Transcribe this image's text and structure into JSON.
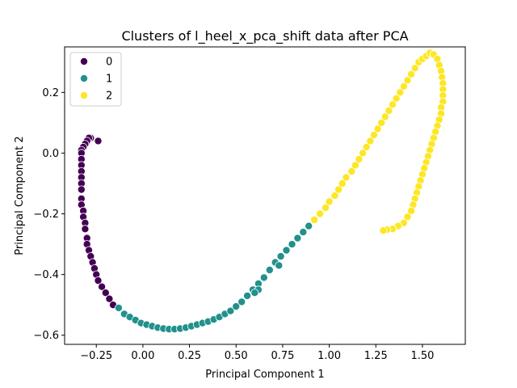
{
  "chart_data": {
    "type": "scatter",
    "title": "Clusters of l_heel_x_pca_shift data after PCA",
    "xlabel": "Principal Component 1",
    "ylabel": "Principal Component 2",
    "xlim": [
      -0.42,
      1.73
    ],
    "ylim": [
      -0.63,
      0.35
    ],
    "xticks": [
      -0.25,
      0.0,
      0.25,
      0.5,
      0.75,
      1.0,
      1.25,
      1.5
    ],
    "yticks": [
      -0.6,
      -0.4,
      -0.2,
      0.0,
      0.2
    ],
    "xtick_labels": [
      "−0.25",
      "0.00",
      "0.25",
      "0.50",
      "0.75",
      "1.00",
      "1.25",
      "1.50"
    ],
    "ytick_labels": [
      "−0.6",
      "−0.4",
      "−0.2",
      "0.0",
      "0.2"
    ],
    "grid": false,
    "legend_position": "top-left",
    "series": [
      {
        "name": "0",
        "color": "#440154",
        "points": [
          [
            -0.24,
            0.04
          ],
          [
            -0.28,
            0.05
          ],
          [
            -0.29,
            0.05
          ],
          [
            -0.3,
            0.04
          ],
          [
            -0.31,
            0.03
          ],
          [
            -0.32,
            0.02
          ],
          [
            -0.33,
            0.01
          ],
          [
            -0.33,
            0.0
          ],
          [
            -0.33,
            -0.02
          ],
          [
            -0.33,
            -0.04
          ],
          [
            -0.33,
            -0.06
          ],
          [
            -0.33,
            -0.08
          ],
          [
            -0.33,
            -0.1
          ],
          [
            -0.33,
            -0.12
          ],
          [
            -0.33,
            -0.15
          ],
          [
            -0.33,
            -0.17
          ],
          [
            -0.32,
            -0.19
          ],
          [
            -0.32,
            -0.21
          ],
          [
            -0.31,
            -0.23
          ],
          [
            -0.31,
            -0.25
          ],
          [
            -0.3,
            -0.28
          ],
          [
            -0.3,
            -0.3
          ],
          [
            -0.29,
            -0.32
          ],
          [
            -0.28,
            -0.34
          ],
          [
            -0.27,
            -0.36
          ],
          [
            -0.26,
            -0.38
          ],
          [
            -0.25,
            -0.4
          ],
          [
            -0.24,
            -0.42
          ],
          [
            -0.22,
            -0.44
          ],
          [
            -0.2,
            -0.46
          ],
          [
            -0.18,
            -0.48
          ],
          [
            -0.16,
            -0.5
          ]
        ]
      },
      {
        "name": "1",
        "color": "#21918c",
        "points": [
          [
            -0.13,
            -0.51
          ],
          [
            -0.1,
            -0.53
          ],
          [
            -0.07,
            -0.54
          ],
          [
            -0.04,
            -0.55
          ],
          [
            -0.01,
            -0.56
          ],
          [
            0.02,
            -0.565
          ],
          [
            0.05,
            -0.57
          ],
          [
            0.08,
            -0.575
          ],
          [
            0.11,
            -0.578
          ],
          [
            0.14,
            -0.58
          ],
          [
            0.17,
            -0.58
          ],
          [
            0.2,
            -0.578
          ],
          [
            0.23,
            -0.575
          ],
          [
            0.26,
            -0.57
          ],
          [
            0.29,
            -0.565
          ],
          [
            0.32,
            -0.56
          ],
          [
            0.35,
            -0.555
          ],
          [
            0.38,
            -0.548
          ],
          [
            0.41,
            -0.54
          ],
          [
            0.44,
            -0.53
          ],
          [
            0.47,
            -0.52
          ],
          [
            0.5,
            -0.505
          ],
          [
            0.53,
            -0.49
          ],
          [
            0.56,
            -0.47
          ],
          [
            0.59,
            -0.45
          ],
          [
            0.62,
            -0.43
          ],
          [
            0.65,
            -0.41
          ],
          [
            0.68,
            -0.385
          ],
          [
            0.71,
            -0.36
          ],
          [
            0.74,
            -0.34
          ],
          [
            0.77,
            -0.32
          ],
          [
            0.8,
            -0.3
          ],
          [
            0.83,
            -0.28
          ],
          [
            0.86,
            -0.26
          ],
          [
            0.89,
            -0.24
          ],
          [
            0.62,
            -0.45
          ],
          [
            0.6,
            -0.46
          ],
          [
            0.73,
            -0.37
          ]
        ]
      },
      {
        "name": "2",
        "color": "#fde725",
        "points": [
          [
            0.92,
            -0.22
          ],
          [
            0.95,
            -0.2
          ],
          [
            0.98,
            -0.18
          ],
          [
            1.0,
            -0.16
          ],
          [
            1.03,
            -0.14
          ],
          [
            1.05,
            -0.12
          ],
          [
            1.07,
            -0.1
          ],
          [
            1.09,
            -0.08
          ],
          [
            1.12,
            -0.06
          ],
          [
            1.14,
            -0.04
          ],
          [
            1.16,
            -0.02
          ],
          [
            1.18,
            0.0
          ],
          [
            1.2,
            0.02
          ],
          [
            1.22,
            0.04
          ],
          [
            1.24,
            0.06
          ],
          [
            1.26,
            0.08
          ],
          [
            1.28,
            0.1
          ],
          [
            1.3,
            0.12
          ],
          [
            1.32,
            0.14
          ],
          [
            1.34,
            0.16
          ],
          [
            1.36,
            0.18
          ],
          [
            1.38,
            0.2
          ],
          [
            1.4,
            0.22
          ],
          [
            1.42,
            0.24
          ],
          [
            1.44,
            0.26
          ],
          [
            1.46,
            0.28
          ],
          [
            1.48,
            0.3
          ],
          [
            1.5,
            0.31
          ],
          [
            1.52,
            0.32
          ],
          [
            1.54,
            0.33
          ],
          [
            1.56,
            0.325
          ],
          [
            1.58,
            0.31
          ],
          [
            1.59,
            0.29
          ],
          [
            1.6,
            0.27
          ],
          [
            1.605,
            0.25
          ],
          [
            1.61,
            0.23
          ],
          [
            1.61,
            0.21
          ],
          [
            1.61,
            0.19
          ],
          [
            1.61,
            0.17
          ],
          [
            1.6,
            0.15
          ],
          [
            1.6,
            0.13
          ],
          [
            1.59,
            0.11
          ],
          [
            1.58,
            0.09
          ],
          [
            1.57,
            0.07
          ],
          [
            1.56,
            0.05
          ],
          [
            1.55,
            0.03
          ],
          [
            1.54,
            0.01
          ],
          [
            1.53,
            -0.01
          ],
          [
            1.52,
            -0.03
          ],
          [
            1.51,
            -0.05
          ],
          [
            1.5,
            -0.07
          ],
          [
            1.49,
            -0.09
          ],
          [
            1.48,
            -0.11
          ],
          [
            1.47,
            -0.13
          ],
          [
            1.46,
            -0.15
          ],
          [
            1.45,
            -0.17
          ],
          [
            1.44,
            -0.19
          ],
          [
            1.42,
            -0.21
          ],
          [
            1.4,
            -0.23
          ],
          [
            1.37,
            -0.24
          ],
          [
            1.34,
            -0.25
          ],
          [
            1.31,
            -0.252
          ],
          [
            1.29,
            -0.255
          ]
        ]
      }
    ]
  }
}
